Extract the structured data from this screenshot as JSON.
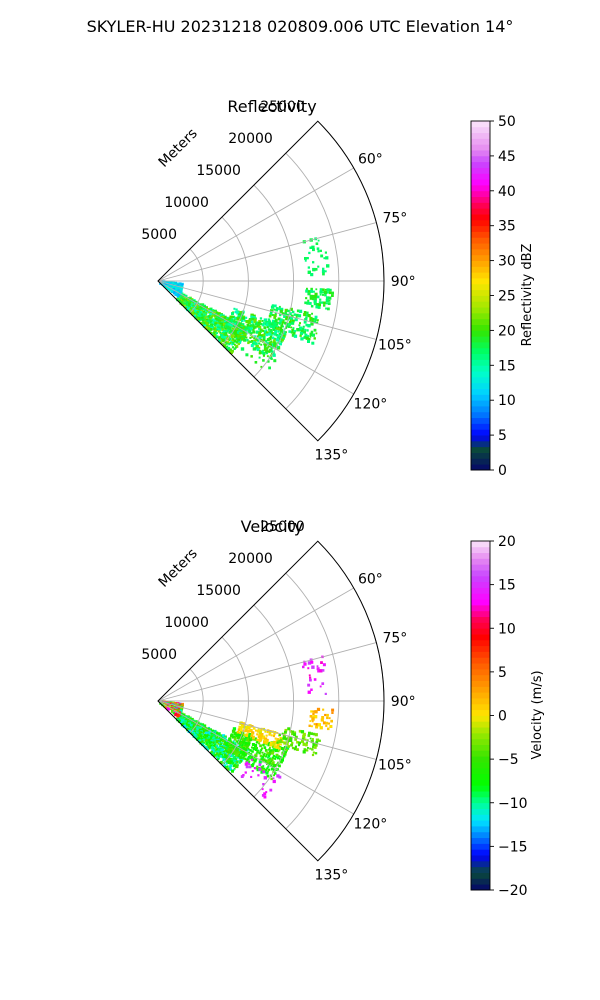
{
  "figure": {
    "title": "SKYLER-HU  20231218  020809.006 UTC Elevation 14°"
  },
  "chart_data": [
    {
      "type": "polar-sector-ppi",
      "title": "Reflectivity",
      "range_axis_label": "Meters",
      "range_ticks": [
        5000,
        10000,
        15000,
        20000,
        25000
      ],
      "range_tick_labels": [
        "5000",
        "10000",
        "15000",
        "20000",
        "25000"
      ],
      "rmax": 25000,
      "azimuth_range_deg": [
        45,
        135
      ],
      "azimuth_ticks": [
        60,
        75,
        90,
        105,
        120,
        135
      ],
      "azimuth_tick_labels": [
        "60°",
        "75°",
        "90°",
        "105°",
        "120°",
        "135°"
      ],
      "grid": true,
      "colorbar": {
        "label": "Reflectivity dBZ",
        "min": 0,
        "max": 50,
        "ticks": [
          0,
          5,
          10,
          15,
          20,
          25,
          30,
          35,
          40,
          45,
          50
        ],
        "tick_labels": [
          "0",
          "5",
          "10",
          "15",
          "20",
          "25",
          "30",
          "35",
          "40",
          "45",
          "50"
        ],
        "colormap": [
          [
            0,
            "#05056a"
          ],
          [
            3,
            "#0a4a3a"
          ],
          [
            5,
            "#0000ff"
          ],
          [
            8,
            "#0077ff"
          ],
          [
            11,
            "#00d2ff"
          ],
          [
            14,
            "#00ffc8"
          ],
          [
            17,
            "#00ff64"
          ],
          [
            20,
            "#33e600"
          ],
          [
            23,
            "#9be800"
          ],
          [
            27,
            "#ffe600"
          ],
          [
            30,
            "#ffa000"
          ],
          [
            33,
            "#ff5a00"
          ],
          [
            36,
            "#ff0000"
          ],
          [
            38,
            "#ff0055"
          ],
          [
            41,
            "#ff00ff"
          ],
          [
            44,
            "#c846ff"
          ],
          [
            46,
            "#e68cf0"
          ],
          [
            50,
            "#fbe6fb"
          ]
        ]
      },
      "echo_regions": [
        {
          "az": [
            118,
            135
          ],
          "r": [
            3000,
            11500
          ],
          "value_range": [
            14,
            23
          ],
          "density": 0.75
        },
        {
          "az": [
            110,
            125
          ],
          "r": [
            9000,
            15500
          ],
          "value_range": [
            14,
            22
          ],
          "density": 0.6
        },
        {
          "az": [
            102,
            112
          ],
          "r": [
            13000,
            18500
          ],
          "value_range": [
            15,
            21
          ],
          "density": 0.55
        },
        {
          "az": [
            93,
            100
          ],
          "r": [
            16500,
            19500
          ],
          "value_range": [
            16,
            20
          ],
          "density": 0.45
        },
        {
          "az": [
            75,
            88
          ],
          "r": [
            16500,
            19000
          ],
          "value_range": [
            16,
            18
          ],
          "density": 0.18
        },
        {
          "az": [
            97,
            128
          ],
          "r": [
            0,
            3000
          ],
          "value_range": [
            9,
            14
          ],
          "density": 0.7
        },
        {
          "az": [
            118,
            130
          ],
          "r": [
            12000,
            16000
          ],
          "value_range": [
            17,
            21
          ],
          "density": 0.12
        }
      ]
    },
    {
      "type": "polar-sector-ppi",
      "title": "Velocity",
      "range_axis_label": "Meters",
      "range_ticks": [
        5000,
        10000,
        15000,
        20000,
        25000
      ],
      "range_tick_labels": [
        "5000",
        "10000",
        "15000",
        "20000",
        "25000"
      ],
      "rmax": 25000,
      "azimuth_range_deg": [
        45,
        135
      ],
      "azimuth_ticks": [
        60,
        75,
        90,
        105,
        120,
        135
      ],
      "azimuth_tick_labels": [
        "60°",
        "75°",
        "90°",
        "105°",
        "120°",
        "135°"
      ],
      "grid": true,
      "colorbar": {
        "label": "Velocity (m/s)",
        "min": -20,
        "max": 20,
        "ticks": [
          -20,
          -15,
          -10,
          -5,
          0,
          5,
          10,
          15,
          20
        ],
        "tick_labels": [
          "−20",
          "−15",
          "−10",
          "−5",
          "0",
          "5",
          "10",
          "15",
          "20"
        ],
        "colormap": [
          [
            -20,
            "#05056a"
          ],
          [
            -18,
            "#0a4a3a"
          ],
          [
            -16,
            "#0000ff"
          ],
          [
            -14,
            "#0077ff"
          ],
          [
            -12,
            "#00e6ff"
          ],
          [
            -10,
            "#00ff96"
          ],
          [
            -8,
            "#00ff00"
          ],
          [
            -5,
            "#33e600"
          ],
          [
            -2,
            "#9be800"
          ],
          [
            0,
            "#ffe600"
          ],
          [
            3,
            "#ffa000"
          ],
          [
            6,
            "#ff5a00"
          ],
          [
            9,
            "#ff0000"
          ],
          [
            11,
            "#ff0055"
          ],
          [
            13,
            "#ff00ff"
          ],
          [
            16,
            "#c846ff"
          ],
          [
            18,
            "#e68cf0"
          ],
          [
            20,
            "#fbe6fb"
          ]
        ]
      },
      "echo_regions": [
        {
          "az": [
            118,
            135
          ],
          "r": [
            3000,
            11500
          ],
          "value_range": [
            -12,
            -4
          ],
          "density": 0.75
        },
        {
          "az": [
            110,
            125
          ],
          "r": [
            9000,
            15500
          ],
          "value_range": [
            -9,
            -3
          ],
          "density": 0.6
        },
        {
          "az": [
            105,
            112
          ],
          "r": [
            9500,
            14500
          ],
          "value_range": [
            -1,
            2
          ],
          "density": 0.55
        },
        {
          "az": [
            102,
            110
          ],
          "r": [
            14000,
            18500
          ],
          "value_range": [
            -6,
            -2
          ],
          "density": 0.5
        },
        {
          "az": [
            93,
            100
          ],
          "r": [
            17000,
            19500
          ],
          "value_range": [
            0,
            4
          ],
          "density": 0.45
        },
        {
          "az": [
            75,
            88
          ],
          "r": [
            16500,
            19000
          ],
          "value_range": [
            12,
            16
          ],
          "density": 0.18
        },
        {
          "az": [
            97,
            128
          ],
          "r": [
            0,
            3000
          ],
          "value_range": [
            -12,
            14
          ],
          "density": 0.7
        },
        {
          "az": [
            122,
            132
          ],
          "r": [
            12000,
            16000
          ],
          "value_range": [
            13,
            16
          ],
          "density": 0.1
        }
      ]
    }
  ]
}
